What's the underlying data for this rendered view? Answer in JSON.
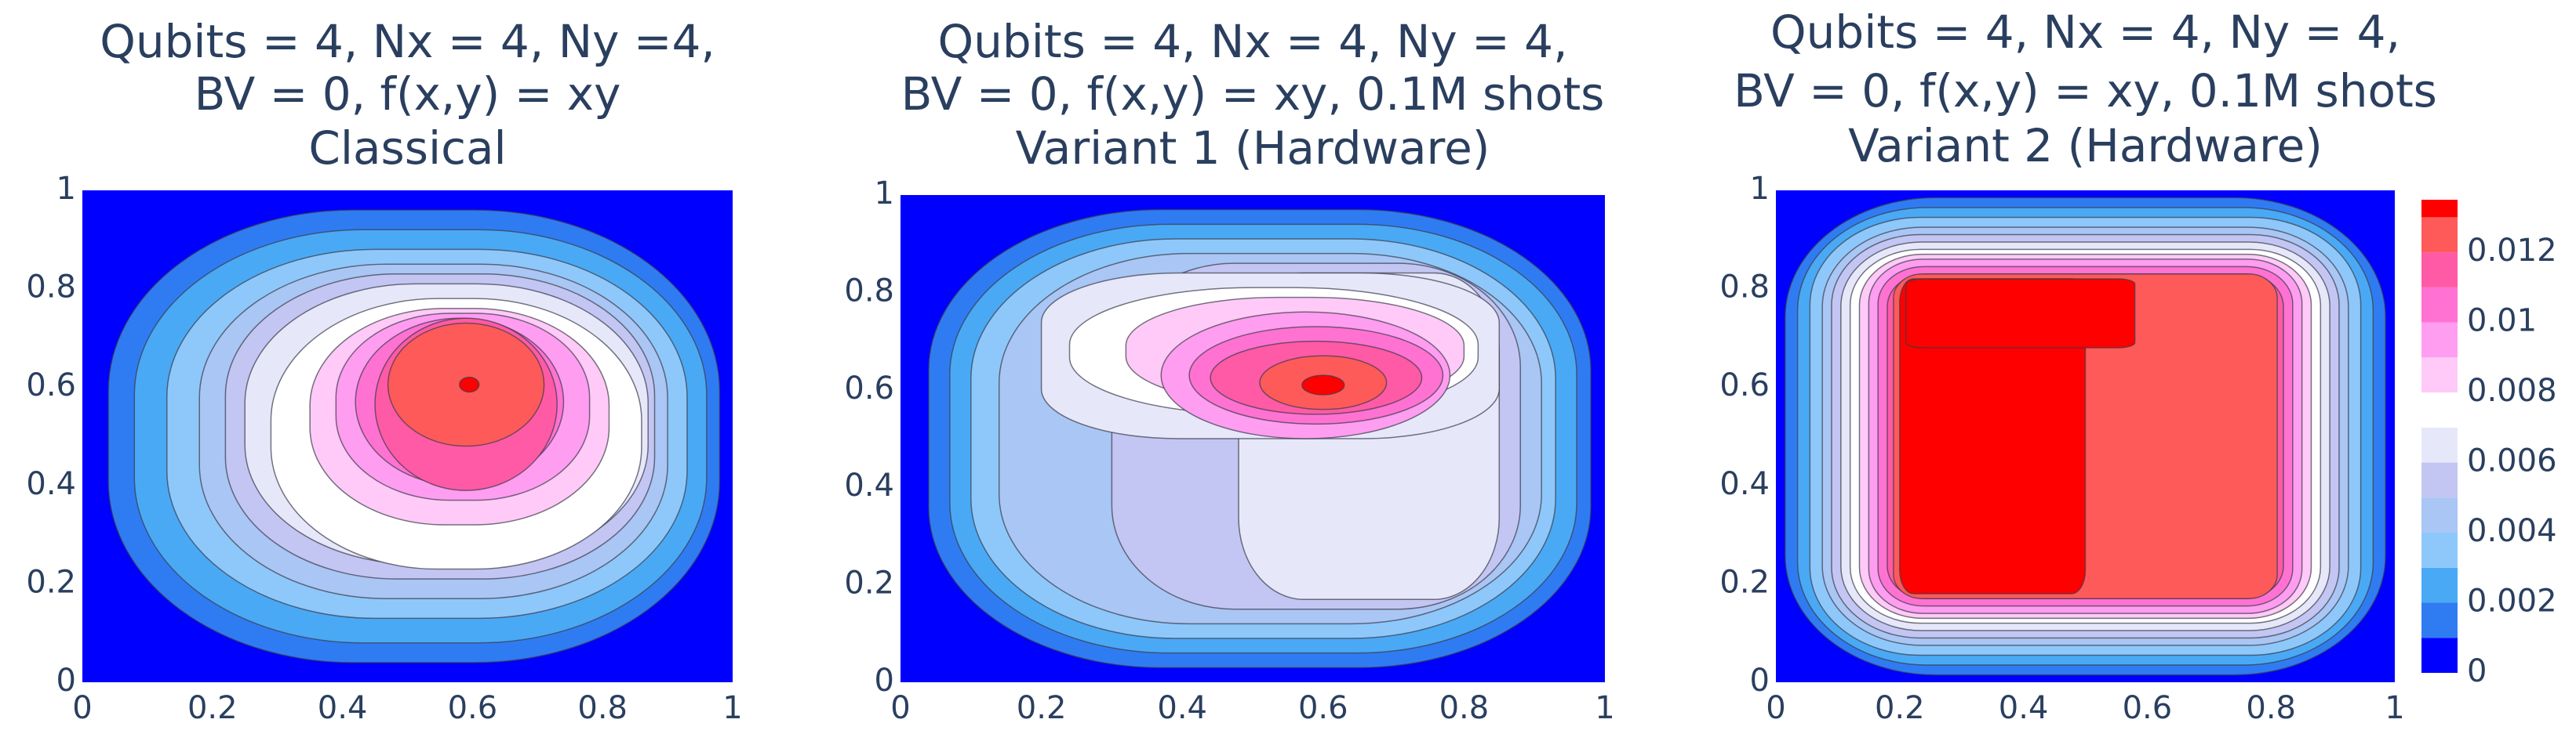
{
  "chart_data": [
    {
      "type": "contour",
      "title": [
        "Qubits = 4, Nx = 4, Ny =4,",
        "BV = 0, f(x,y) = xy",
        "Classical"
      ],
      "xlim": [
        0,
        1
      ],
      "ylim": [
        0,
        1
      ],
      "xticks": [
        0,
        0.2,
        0.4,
        0.6,
        0.8,
        1
      ],
      "yticks": [
        0,
        0.2,
        0.4,
        0.6,
        0.8,
        1
      ]
    },
    {
      "type": "contour",
      "title": [
        "Qubits = 4, Nx = 4, Ny = 4,",
        "BV = 0, f(x,y) = xy, 0.1M shots",
        "Variant 1 (Hardware)"
      ],
      "xlim": [
        0,
        1
      ],
      "ylim": [
        0,
        1
      ],
      "xticks": [
        0,
        0.2,
        0.4,
        0.6,
        0.8,
        1
      ],
      "yticks": [
        0,
        0.2,
        0.4,
        0.6,
        0.8,
        1
      ]
    },
    {
      "type": "contour",
      "title": [
        "Qubits = 4, Nx = 4, Ny = 4,",
        "BV = 0, f(x,y) = xy, 0.1M shots",
        "Variant 2 (Hardware)"
      ],
      "xlim": [
        0,
        1
      ],
      "ylim": [
        0,
        1
      ],
      "xticks": [
        0,
        0.2,
        0.4,
        0.6,
        0.8,
        1
      ],
      "yticks": [
        0,
        0.2,
        0.4,
        0.6,
        0.8,
        1
      ],
      "colorbar": {
        "lim": [
          0,
          0.0135
        ],
        "levels": [
          0,
          0.001,
          0.002,
          0.003,
          0.004,
          0.005,
          0.006,
          0.007,
          0.008,
          0.009,
          0.01,
          0.011,
          0.012,
          0.013
        ],
        "colors": [
          "#0000ff",
          "#2f7cf2",
          "#4aa9f5",
          "#8ec8fa",
          "#a9c6f4",
          "#c3c6f2",
          "#e6e8fa",
          "#ffffff",
          "#ffcaf7",
          "#ff9df0",
          "#ff72d2",
          "#ff5aa5",
          "#ff5a5a",
          "#ff0000"
        ],
        "ticks": [
          0,
          0.002,
          0.004,
          0.006,
          0.008,
          0.01,
          0.012
        ]
      }
    }
  ]
}
